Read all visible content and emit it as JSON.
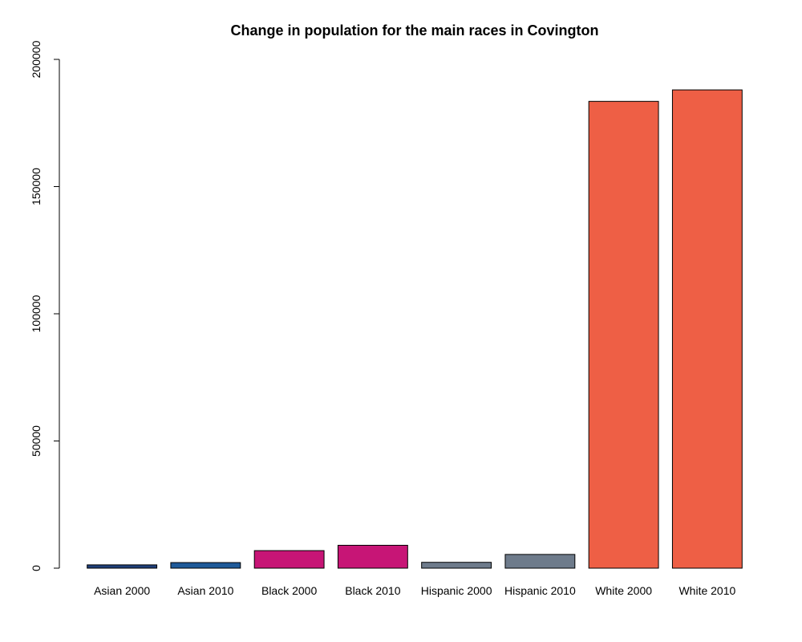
{
  "chart_data": {
    "type": "bar",
    "title": "Change in population for the main races in Covington",
    "xlabel": "",
    "ylabel": "",
    "categories": [
      "Asian 2000",
      "Asian 2010",
      "Black 2000",
      "Black 2010",
      "Hispanic 2000",
      "Hispanic 2010",
      "White 2000",
      "White 2010"
    ],
    "values": [
      1300,
      2200,
      6900,
      9000,
      2300,
      5400,
      183500,
      188000
    ],
    "colors": [
      "#1f3f7a",
      "#1f5a99",
      "#c71576",
      "#c71576",
      "#6e7b8b",
      "#6e7b8b",
      "#ee5f45",
      "#ee5f45"
    ],
    "ylim": [
      0,
      200000
    ],
    "yticks": [
      "0",
      "50000",
      "100000",
      "150000",
      "200000"
    ],
    "grid": false,
    "legend": "none"
  }
}
